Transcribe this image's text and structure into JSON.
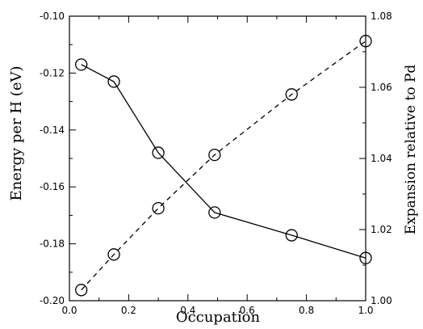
{
  "chart_data": {
    "type": "line",
    "xlabel": "Occupation",
    "ylabel_left": "Energy per H (eV)",
    "ylabel_right": "Expansion relative to Pd",
    "xlim": [
      0.0,
      1.0
    ],
    "ylim_left": [
      -0.2,
      -0.1
    ],
    "ylim_right": [
      1.0,
      1.08
    ],
    "x_ticks": [
      "0.0",
      "0.2",
      "0.4",
      "0.6",
      "0.8",
      "1.0"
    ],
    "y_left_ticks": [
      "-0.20",
      "-0.18",
      "-0.16",
      "-0.14",
      "-0.12",
      "-0.10"
    ],
    "y_right_ticks": [
      "1.00",
      "1.02",
      "1.04",
      "1.06",
      "1.08"
    ],
    "grid": false,
    "marker": "open-circle",
    "series": [
      {
        "axis": "left",
        "line_style": "solid",
        "x": [
          0.04,
          0.15,
          0.3,
          0.49,
          0.75,
          1.0
        ],
        "y": [
          -0.117,
          -0.123,
          -0.148,
          -0.169,
          -0.177,
          -0.185
        ]
      },
      {
        "axis": "right",
        "line_style": "dashed",
        "x": [
          0.04,
          0.15,
          0.3,
          0.49,
          0.75,
          1.0
        ],
        "y": [
          1.003,
          1.013,
          1.026,
          1.041,
          1.058,
          1.073
        ]
      }
    ]
  }
}
